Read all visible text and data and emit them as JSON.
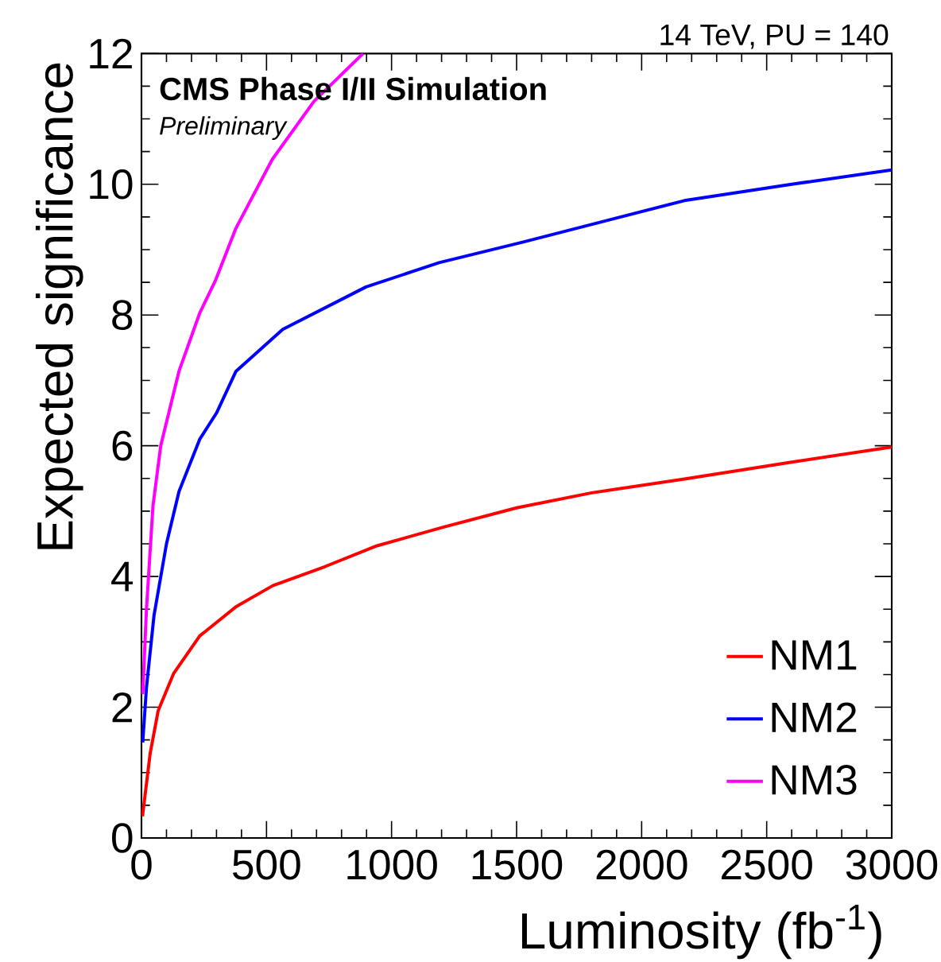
{
  "chart_data": {
    "type": "line",
    "xlabel": "Luminosity (fb$^{-1}$)",
    "ylabel": "Expected significance",
    "annotations": [
      "14 TeV, PU = 140",
      "CMS Phase I/II Simulation",
      "Preliminary"
    ],
    "xlim": [
      0,
      3000
    ],
    "xticks": [
      0,
      500,
      1000,
      1500,
      2000,
      2500,
      3000
    ],
    "ylim": [
      0,
      12
    ],
    "yticks": [
      0,
      2,
      4,
      6,
      8,
      10,
      12
    ],
    "legend": "bottom right",
    "grid": false,
    "marker": "none",
    "line_style": "solid",
    "series": [
      {
        "name": "NM1",
        "color": "#ff0000",
        "x": [
          4,
          35,
          67,
          129,
          233,
          379,
          525,
          733,
          942,
          1212,
          1500,
          1800,
          2171,
          2600,
          3000
        ],
        "values": [
          0.33,
          1.3,
          1.95,
          2.52,
          3.09,
          3.54,
          3.86,
          4.15,
          4.47,
          4.76,
          5.05,
          5.28,
          5.49,
          5.75,
          5.98
        ]
      },
      {
        "name": "NM2",
        "color": "#0000ff",
        "x": [
          5,
          20,
          50,
          100,
          150,
          233,
          300,
          378,
          565,
          898,
          1190,
          1530,
          2171,
          2600,
          3000
        ],
        "values": [
          1.46,
          2.3,
          3.4,
          4.5,
          5.3,
          6.1,
          6.5,
          7.14,
          7.78,
          8.43,
          8.8,
          9.12,
          9.75,
          10.0,
          10.22
        ]
      },
      {
        "name": "NM3",
        "color": "#ff00ff",
        "x": [
          5,
          20,
          46,
          77,
          150,
          233,
          295,
          378,
          523,
          690,
          886
        ],
        "values": [
          2.2,
          3.5,
          5.08,
          6.0,
          7.14,
          8.03,
          8.52,
          9.33,
          10.38,
          11.27,
          12.0
        ]
      }
    ]
  }
}
